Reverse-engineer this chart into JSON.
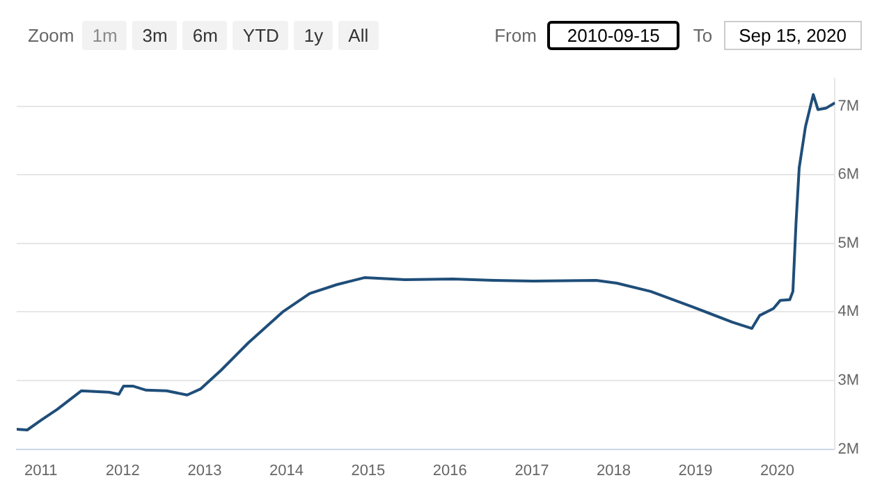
{
  "chart_data": {
    "type": "line",
    "annotations": [
      "Zoom",
      "1m",
      "3m",
      "6m",
      "YTD",
      "1y",
      "All",
      "From",
      "2010-09-15",
      "To",
      "Sep 15, 2020"
    ],
    "x": [
      "2010-09-15",
      "2010-11-01",
      "2011-01-01",
      "2011-03-15",
      "2011-06-30",
      "2011-11-01",
      "2011-12-15",
      "2012-01-05",
      "2012-02-15",
      "2012-04-15",
      "2012-07-15",
      "2012-10-15",
      "2012-12-15",
      "2013-03-15",
      "2013-07-15",
      "2013-12-15",
      "2014-04-15",
      "2014-08-15",
      "2014-12-15",
      "2015-06-15",
      "2016-01-15",
      "2016-07-15",
      "2017-01-15",
      "2017-10-15",
      "2018-01-15",
      "2018-06-15",
      "2018-12-15",
      "2019-06-15",
      "2019-09-10",
      "2019-10-15",
      "2019-12-15",
      "2020-01-15",
      "2020-02-26",
      "2020-03-11",
      "2020-03-25",
      "2020-04-08",
      "2020-05-06",
      "2020-06-10",
      "2020-07-01",
      "2020-08-05",
      "2020-09-15"
    ],
    "series": [
      {
        "color": "#1f4e79",
        "values": [
          2.29,
          2.28,
          2.42,
          2.58,
          2.85,
          2.83,
          2.8,
          2.92,
          2.92,
          2.86,
          2.85,
          2.79,
          2.88,
          3.15,
          3.55,
          4.0,
          4.27,
          4.4,
          4.5,
          4.47,
          4.48,
          4.46,
          4.45,
          4.46,
          4.42,
          4.3,
          4.08,
          3.85,
          3.76,
          3.95,
          4.05,
          4.17,
          4.18,
          4.3,
          5.3,
          6.1,
          6.7,
          7.17,
          6.95,
          6.97,
          7.05
        ]
      }
    ],
    "xlim": [
      "2010-09-15",
      "2020-09-15"
    ],
    "xticks": [
      "2011",
      "2012",
      "2013",
      "2014",
      "2015",
      "2016",
      "2017",
      "2018",
      "2019",
      "2020"
    ],
    "ylim": [
      2,
      7.4
    ],
    "yticks": [
      {
        "value": 2,
        "label": "2M"
      },
      {
        "value": 3,
        "label": "3M"
      },
      {
        "value": 4,
        "label": "4M"
      },
      {
        "value": 5,
        "label": "5M"
      },
      {
        "value": 6,
        "label": "6M"
      },
      {
        "value": 7,
        "label": "7M"
      }
    ],
    "grid": "y",
    "legend": false,
    "marker": "none",
    "line_style": "solid"
  }
}
